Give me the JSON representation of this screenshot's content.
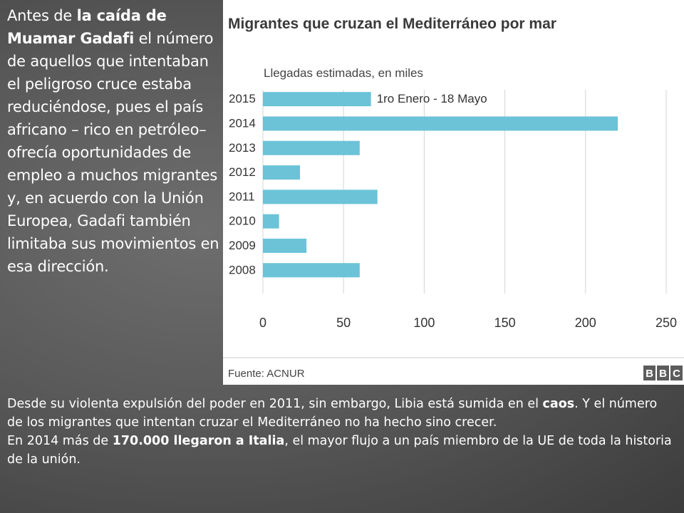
{
  "slide": {
    "side_text": {
      "before": "Antes de ",
      "bold": "la caída de Muamar Gadafi",
      "after": " el número de aquellos que intentaban el peligroso cruce estaba reduciéndose, pues el país africano – rico en petróleo– ofrecía oportunidades de empleo a muchos migrantes y, en acuerdo con la Unión Europea, Gadafi también limitaba sus movimientos en esa dirección."
    },
    "bottom_text": {
      "p1_a": "Desde su violenta expulsión del poder en 2011, sin embargo, Libia está sumida en el ",
      "p1_bold": "caos",
      "p1_b": ". Y el número de los migrantes que intentan cruzar el Mediterráneo no ha hecho sino crecer.",
      "p2_a": "En 2014 más de ",
      "p2_bold": "170.000 llegaron a Italia",
      "p2_b": ", el mayor flujo a un país miembro de la UE de toda la historia de la unión."
    }
  },
  "colors": {
    "bar": "#6cc3d8",
    "grid": "#d4d4d4",
    "bbc_box": "#5c5c5c"
  },
  "chart_data": {
    "type": "bar",
    "orientation": "horizontal",
    "title": "Migrantes que cruzan el Mediterráneo por mar",
    "subtitle": "Llegadas estimadas, en miles",
    "categories": [
      "2015",
      "2014",
      "2013",
      "2012",
      "2011",
      "2010",
      "2009",
      "2008"
    ],
    "values": [
      67,
      220,
      60,
      23,
      71,
      10,
      27,
      60
    ],
    "data_labels": [
      "1ro Enero - 18 Mayo",
      "",
      "",
      "",
      "",
      "",
      "",
      ""
    ],
    "xlim": [
      0,
      250
    ],
    "xticks": [
      "0",
      "50",
      "100",
      "150",
      "200",
      "250"
    ],
    "grid": true,
    "source": "Fuente: ACNUR",
    "logo": [
      "B",
      "B",
      "C"
    ]
  }
}
